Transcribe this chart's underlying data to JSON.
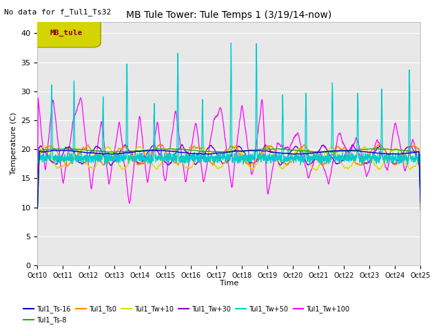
{
  "title": "MB Tule Tower: Tule Temps 1 (3/19/14-now)",
  "subtitle": "No data for f_Tul1_Ts32",
  "xlabel": "Time",
  "ylabel": "Temperature (C)",
  "ylim": [
    0,
    42
  ],
  "yticks": [
    0,
    5,
    10,
    15,
    20,
    25,
    30,
    35,
    40
  ],
  "xtick_labels": [
    "Oct 10",
    "Oct 11",
    "Oct 12",
    "Oct 13",
    "Oct 14",
    "Oct 15",
    "Oct 16",
    "Oct 17",
    "Oct 18",
    "Oct 19",
    "Oct 20",
    "Oct 21",
    "Oct 22",
    "Oct 23",
    "Oct 24",
    "Oct 25"
  ],
  "legend_box_label": "MB_tule",
  "legend_box_color": "#d4d400",
  "legend_box_text_color": "#880000",
  "bg_color": "#e8e8e8",
  "series_colors": {
    "Tul1_Ts-16": "#0000cc",
    "Tul1_Ts-8": "#00bb00",
    "Tul1_Ts0": "#ff8800",
    "Tul1_Tw+10": "#dddd00",
    "Tul1_Tw+30": "#8800cc",
    "Tul1_Tw+50": "#00cccc",
    "Tul1_Tw+100": "#ff00ff"
  }
}
